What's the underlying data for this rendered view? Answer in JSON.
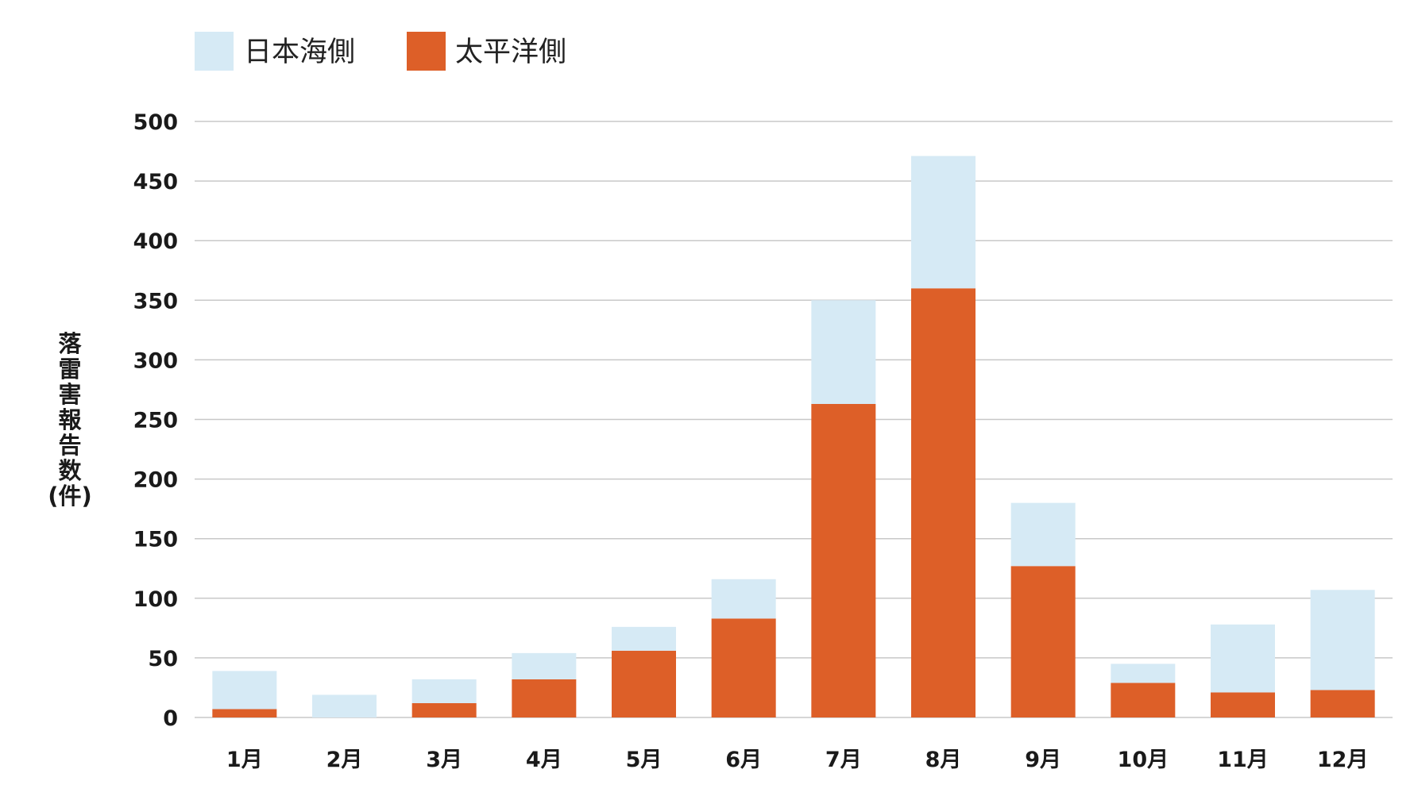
{
  "chart_data": {
    "type": "bar",
    "stacked": true,
    "categories": [
      "1月",
      "2月",
      "3月",
      "4月",
      "5月",
      "6月",
      "7月",
      "8月",
      "9月",
      "10月",
      "11月",
      "12月"
    ],
    "series": [
      {
        "name": "太平洋側",
        "color": "#dd5f28",
        "values": [
          7,
          0,
          12,
          32,
          56,
          83,
          263,
          360,
          127,
          29,
          21,
          23
        ]
      },
      {
        "name": "日本海側",
        "color": "#d6eaf5",
        "values": [
          32,
          19,
          20,
          22,
          20,
          33,
          87,
          111,
          53,
          16,
          57,
          84
        ]
      }
    ],
    "legend_order": [
      "日本海側",
      "太平洋側"
    ],
    "legend_position": "top-left",
    "ylabel": "落雷害報告数(件)",
    "ylabel_chars": [
      "落",
      "雷",
      "害",
      "報",
      "告",
      "数"
    ],
    "ylabel_unit": "(件)",
    "xlabel": "",
    "title": "",
    "ylim": [
      0,
      500
    ],
    "yticks": [
      0,
      50,
      100,
      150,
      200,
      250,
      300,
      350,
      400,
      450,
      500
    ],
    "grid": "horizontal",
    "grid_color": "#c8c8c8"
  }
}
